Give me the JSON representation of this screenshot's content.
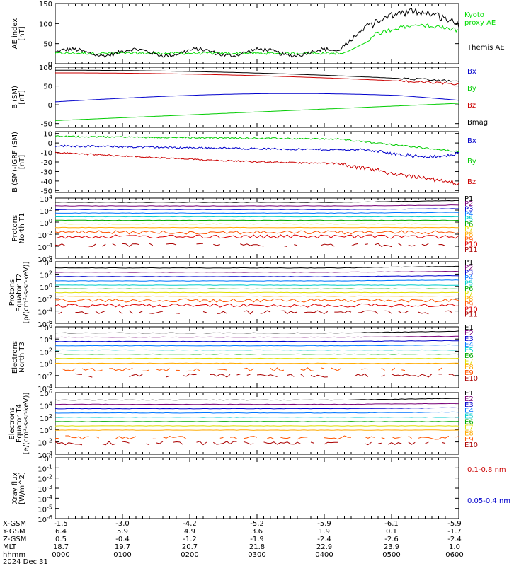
{
  "chart_data": [
    {
      "type": "line",
      "ylabel": "AE index\n[nT]",
      "ylim": [
        0,
        150
      ],
      "yticks": [
        "0",
        "50",
        "100",
        "150"
      ],
      "yscale": "linear",
      "series": [
        {
          "name": "Kyoto\nproxy AE",
          "color": "#00dd00"
        },
        {
          "name": "Themis AE",
          "color": "#000000"
        }
      ]
    },
    {
      "type": "line",
      "ylabel": "B (SM)\n[nT]",
      "ylim": [
        -60,
        100
      ],
      "yticks": [
        "-50",
        "0",
        "50",
        "100"
      ],
      "yscale": "linear",
      "series": [
        {
          "name": "Bx",
          "color": "#0000cc"
        },
        {
          "name": "By",
          "color": "#00cc00"
        },
        {
          "name": "Bz",
          "color": "#cc0000"
        },
        {
          "name": "Bmag",
          "color": "#000000"
        }
      ]
    },
    {
      "type": "line",
      "ylabel": "B (SM)-IGRF (SM)\n[nT]",
      "ylim": [
        -52,
        12
      ],
      "yticks": [
        "-50",
        "-40",
        "-30",
        "-20",
        "-10",
        "0",
        "10"
      ],
      "yscale": "linear",
      "series": [
        {
          "name": "Bx",
          "color": "#0000cc"
        },
        {
          "name": "By",
          "color": "#00cc00"
        },
        {
          "name": "Bz",
          "color": "#cc0000"
        }
      ]
    },
    {
      "type": "line",
      "ylabel": "Protons\nNorth T1",
      "yscale": "log",
      "yticks": [
        "10^4",
        "10^2",
        "10^0",
        "10^-2",
        "10^-4",
        "10^-6"
      ],
      "series": [
        {
          "name": "P1",
          "color": "#000000"
        },
        {
          "name": "P2",
          "color": "#770077"
        },
        {
          "name": "P3",
          "color": "#0000cc"
        },
        {
          "name": "P4",
          "color": "#0077ff"
        },
        {
          "name": "P5",
          "color": "#00cccc"
        },
        {
          "name": "P6",
          "color": "#00aa00"
        },
        {
          "name": "P7",
          "color": "#dddd00"
        },
        {
          "name": "P8",
          "color": "#ffaa00"
        },
        {
          "name": "P9",
          "color": "#ff5500"
        },
        {
          "name": "P10",
          "color": "#dd0000"
        },
        {
          "name": "P11",
          "color": "#aa0000"
        }
      ]
    },
    {
      "type": "line",
      "ylabel": "Protons\nEquator T2\n[p/(cm²-s-sr-keV)]",
      "yscale": "log",
      "yticks": [
        "10^4",
        "10^2",
        "10^0",
        "10^-2",
        "10^-4",
        "10^-6"
      ],
      "series": [
        {
          "name": "P1",
          "color": "#000000"
        },
        {
          "name": "P2",
          "color": "#770077"
        },
        {
          "name": "P3",
          "color": "#0000cc"
        },
        {
          "name": "P4",
          "color": "#0077ff"
        },
        {
          "name": "P5",
          "color": "#00cccc"
        },
        {
          "name": "P6",
          "color": "#00aa00"
        },
        {
          "name": "P7",
          "color": "#dddd00"
        },
        {
          "name": "P8",
          "color": "#ffaa00"
        },
        {
          "name": "P9",
          "color": "#ff5500"
        },
        {
          "name": "P10",
          "color": "#dd0000"
        },
        {
          "name": "P11",
          "color": "#aa0000"
        }
      ]
    },
    {
      "type": "line",
      "ylabel": "Electrons\nNorth T3",
      "yscale": "log",
      "yticks": [
        "10^6",
        "10^4",
        "10^2",
        "10^0",
        "10^-2",
        "10^-4"
      ],
      "series": [
        {
          "name": "E1",
          "color": "#000000"
        },
        {
          "name": "E2",
          "color": "#770077"
        },
        {
          "name": "E3",
          "color": "#0000cc"
        },
        {
          "name": "E4",
          "color": "#0077ff"
        },
        {
          "name": "E5",
          "color": "#00cccc"
        },
        {
          "name": "E6",
          "color": "#00aa00"
        },
        {
          "name": "E7",
          "color": "#dddd00"
        },
        {
          "name": "E8",
          "color": "#ffaa00"
        },
        {
          "name": "E9",
          "color": "#ff5500"
        },
        {
          "name": "E10",
          "color": "#aa0000"
        }
      ]
    },
    {
      "type": "line",
      "ylabel": "Electrons\nEquator T4\n[e/(cm²-s-sr-keV)]",
      "yscale": "log",
      "yticks": [
        "10^6",
        "10^4",
        "10^2",
        "10^0",
        "10^-2",
        "10^-4"
      ],
      "series": [
        {
          "name": "E1",
          "color": "#000000"
        },
        {
          "name": "E2",
          "color": "#770077"
        },
        {
          "name": "E3",
          "color": "#0000cc"
        },
        {
          "name": "E4",
          "color": "#0077ff"
        },
        {
          "name": "E5",
          "color": "#00cccc"
        },
        {
          "name": "E6",
          "color": "#00aa00"
        },
        {
          "name": "E7",
          "color": "#dddd00"
        },
        {
          "name": "E8",
          "color": "#ffaa00"
        },
        {
          "name": "E9",
          "color": "#ff5500"
        },
        {
          "name": "E10",
          "color": "#aa0000"
        }
      ]
    },
    {
      "type": "line",
      "ylabel": "Xray flux\n[W/m^2]",
      "yscale": "log",
      "yticks": [
        "10^0",
        "10^-1",
        "10^-2",
        "10^-3",
        "10^-4",
        "10^-5",
        "10^-6"
      ],
      "series": [
        {
          "name": "0.1-0.8 nm",
          "color": "#cc0000"
        },
        {
          "name": "0.05-0.4 nm",
          "color": "#0000cc"
        }
      ]
    }
  ],
  "bottom_axis": {
    "row_labels": [
      "X-GSM",
      "Y-GSM",
      "Z-GSM",
      "MLT",
      "hhmm",
      "2024 Dec 31"
    ],
    "columns": [
      {
        "x": "-1.5",
        "y": "6.4",
        "z": "0.5",
        "mlt": "18.7",
        "hhmm": "0000"
      },
      {
        "x": "-3.0",
        "y": "5.9",
        "z": "-0.4",
        "mlt": "19.7",
        "hhmm": "0100"
      },
      {
        "x": "-4.2",
        "y": "4.9",
        "z": "-1.2",
        "mlt": "20.7",
        "hhmm": "0200"
      },
      {
        "x": "-5.2",
        "y": "3.6",
        "z": "-1.9",
        "mlt": "21.8",
        "hhmm": "0300"
      },
      {
        "x": "-5.9",
        "y": "1.9",
        "z": "-2.4",
        "mlt": "22.9",
        "hhmm": "0400"
      },
      {
        "x": "-6.1",
        "y": "0.1",
        "z": "-2.6",
        "mlt": "23.9",
        "hhmm": "0500"
      },
      {
        "x": "-5.9",
        "y": "-1.7",
        "z": "-2.4",
        "mlt": "1.0",
        "hhmm": "0600"
      }
    ]
  }
}
